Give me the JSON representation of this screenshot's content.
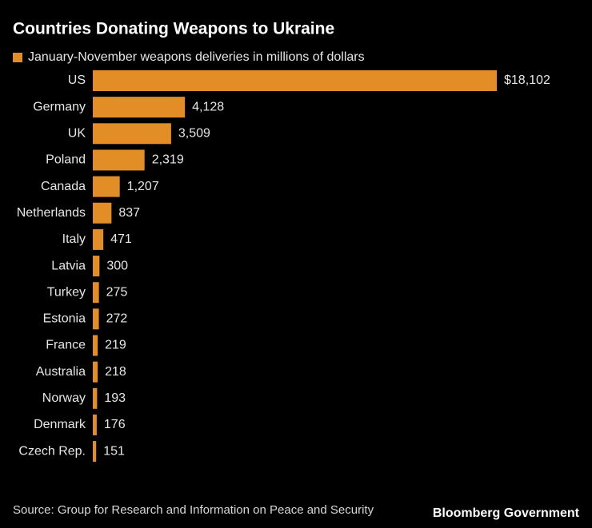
{
  "chart_data": {
    "type": "bar",
    "orientation": "horizontal",
    "title": "Countries Donating Weapons to Ukraine",
    "categories": [
      "US",
      "Germany",
      "UK",
      "Poland",
      "Canada",
      "Netherlands",
      "Italy",
      "Latvia",
      "Turkey",
      "Estonia",
      "France",
      "Australia",
      "Norway",
      "Denmark",
      "Czech Rep."
    ],
    "series": [
      {
        "name": "January-November weapons deliveries in millions of dollars",
        "color": "#e38d26",
        "values": [
          18102,
          4128,
          3509,
          2319,
          1207,
          837,
          471,
          300,
          275,
          272,
          219,
          218,
          193,
          176,
          151
        ],
        "value_labels": [
          "$18,102",
          "4,128",
          "3,509",
          "2,319",
          "1,207",
          "837",
          "471",
          "300",
          "275",
          "272",
          "219",
          "218",
          "193",
          "176",
          "151"
        ]
      }
    ],
    "source": "Source: Group for Research and Information on Peace and Security",
    "brand": "Bloomberg Government"
  }
}
